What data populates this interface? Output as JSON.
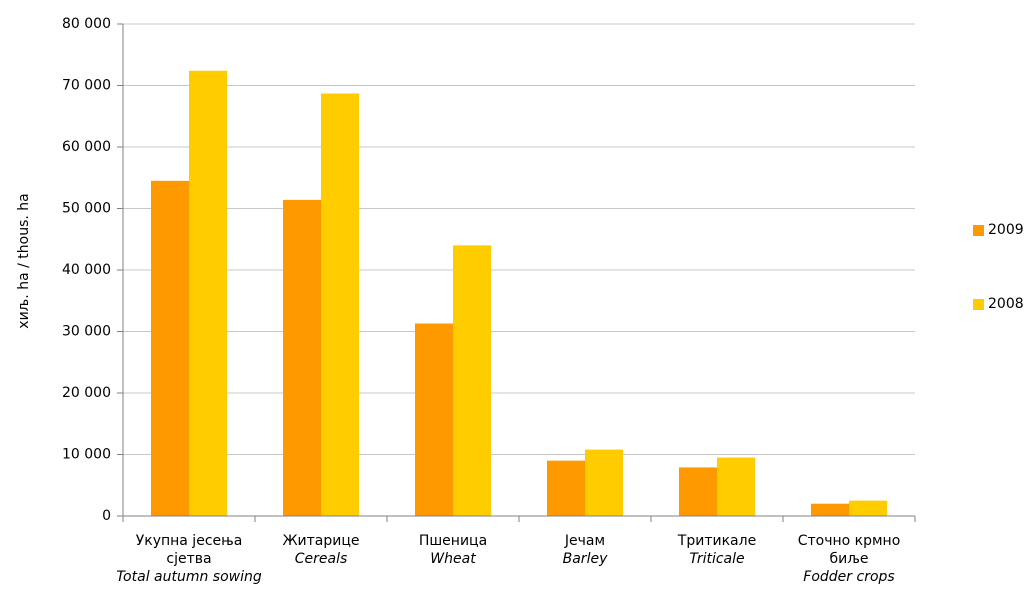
{
  "chart_data": {
    "type": "bar",
    "ylabel": "хиљ. ha / thous. ha",
    "ylim": [
      0,
      80000
    ],
    "yticks": [
      "0",
      "10 000",
      "20 000",
      "30 000",
      "40 000",
      "50 000",
      "60 000",
      "70 000",
      "80 000"
    ],
    "ytick_values": [
      0,
      10000,
      20000,
      30000,
      40000,
      50000,
      60000,
      70000,
      80000
    ],
    "grid": true,
    "legend_position": "right",
    "categories": [
      {
        "sr": [
          "Укупна јесења",
          "сјетва"
        ],
        "en": "Total autumn sowing"
      },
      {
        "sr": [
          "Житарице"
        ],
        "en": "Cereals"
      },
      {
        "sr": [
          "Пшеница"
        ],
        "en": "Wheat"
      },
      {
        "sr": [
          "Јечам"
        ],
        "en": "Barley"
      },
      {
        "sr": [
          "Тритикале"
        ],
        "en": "Triticale"
      },
      {
        "sr": [
          "Сточно крмно",
          "биље"
        ],
        "en": "Fodder crops"
      }
    ],
    "series": [
      {
        "name": "2009",
        "color": "#FF9900",
        "values": [
          54500,
          51400,
          31300,
          9000,
          7900,
          2000
        ]
      },
      {
        "name": "2008",
        "color": "#FFCC00",
        "values": [
          72400,
          68700,
          44000,
          10800,
          9500,
          2500
        ]
      }
    ]
  }
}
